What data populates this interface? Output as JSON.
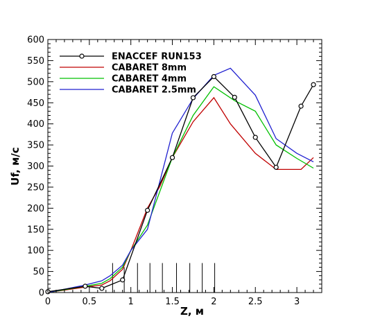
{
  "chart_data": {
    "type": "line",
    "xlabel": "Z, м",
    "ylabel": "Uf, м/с",
    "xlim": [
      0,
      3.3
    ],
    "ylim": [
      0,
      600
    ],
    "xticks": [
      0,
      0.5,
      1,
      1.5,
      2,
      2.5,
      3
    ],
    "xtick_labels": [
      "0",
      "0.5",
      "1",
      "1.5",
      "2",
      "2.5",
      "3"
    ],
    "yticks": [
      0,
      50,
      100,
      150,
      200,
      250,
      300,
      350,
      400,
      450,
      500,
      550,
      600
    ],
    "ytick_labels": [
      "0",
      "50",
      "100",
      "150",
      "200",
      "250",
      "300",
      "350",
      "400",
      "450",
      "500",
      "550",
      "600"
    ],
    "grid": false,
    "legend_position": "top-left",
    "series": [
      {
        "name": "ENACCEF RUN153",
        "color": "#000000",
        "marker": "circle",
        "x": [
          0,
          0.45,
          0.65,
          0.9,
          1.2,
          1.5,
          1.75,
          2.0,
          2.25,
          2.5,
          2.75,
          3.05,
          3.2
        ],
        "y": [
          2,
          15,
          10,
          30,
          195,
          320,
          462,
          512,
          463,
          368,
          297,
          442,
          493
        ]
      },
      {
        "name": "CABARET 8mm",
        "color": "#c00000",
        "marker": "none",
        "x": [
          0,
          0.45,
          0.65,
          0.75,
          0.9,
          1.0,
          1.2,
          1.35,
          1.5,
          1.75,
          2.0,
          2.2,
          2.5,
          2.75,
          3.05,
          3.2
        ],
        "y": [
          0,
          13,
          18,
          28,
          55,
          100,
          200,
          252,
          320,
          405,
          462,
          400,
          330,
          292,
          292,
          320
        ]
      },
      {
        "name": "CABARET 4mm",
        "color": "#00c000",
        "marker": "none",
        "x": [
          0,
          0.45,
          0.65,
          0.75,
          0.9,
          1.0,
          1.2,
          1.5,
          1.75,
          2.0,
          2.25,
          2.5,
          2.75,
          3.0,
          3.2
        ],
        "y": [
          0,
          15,
          22,
          33,
          60,
          100,
          160,
          320,
          420,
          488,
          455,
          430,
          350,
          318,
          295
        ]
      },
      {
        "name": "CABARET 2.5mm",
        "color": "#2020d0",
        "marker": "none",
        "x": [
          0,
          0.45,
          0.65,
          0.75,
          0.9,
          1.0,
          1.2,
          1.5,
          1.75,
          2.0,
          2.2,
          2.5,
          2.75,
          3.0,
          3.2
        ],
        "y": [
          0,
          18,
          28,
          40,
          65,
          100,
          150,
          378,
          460,
          515,
          532,
          468,
          365,
          330,
          310
        ]
      }
    ],
    "reference_lines": {
      "color": "#000000",
      "x": [
        0.78,
        0.92,
        1.08,
        1.23,
        1.38,
        1.55,
        1.71,
        1.86,
        2.01
      ],
      "y_top": [
        70,
        60,
        70,
        70,
        70,
        70,
        70,
        70,
        70
      ]
    }
  }
}
